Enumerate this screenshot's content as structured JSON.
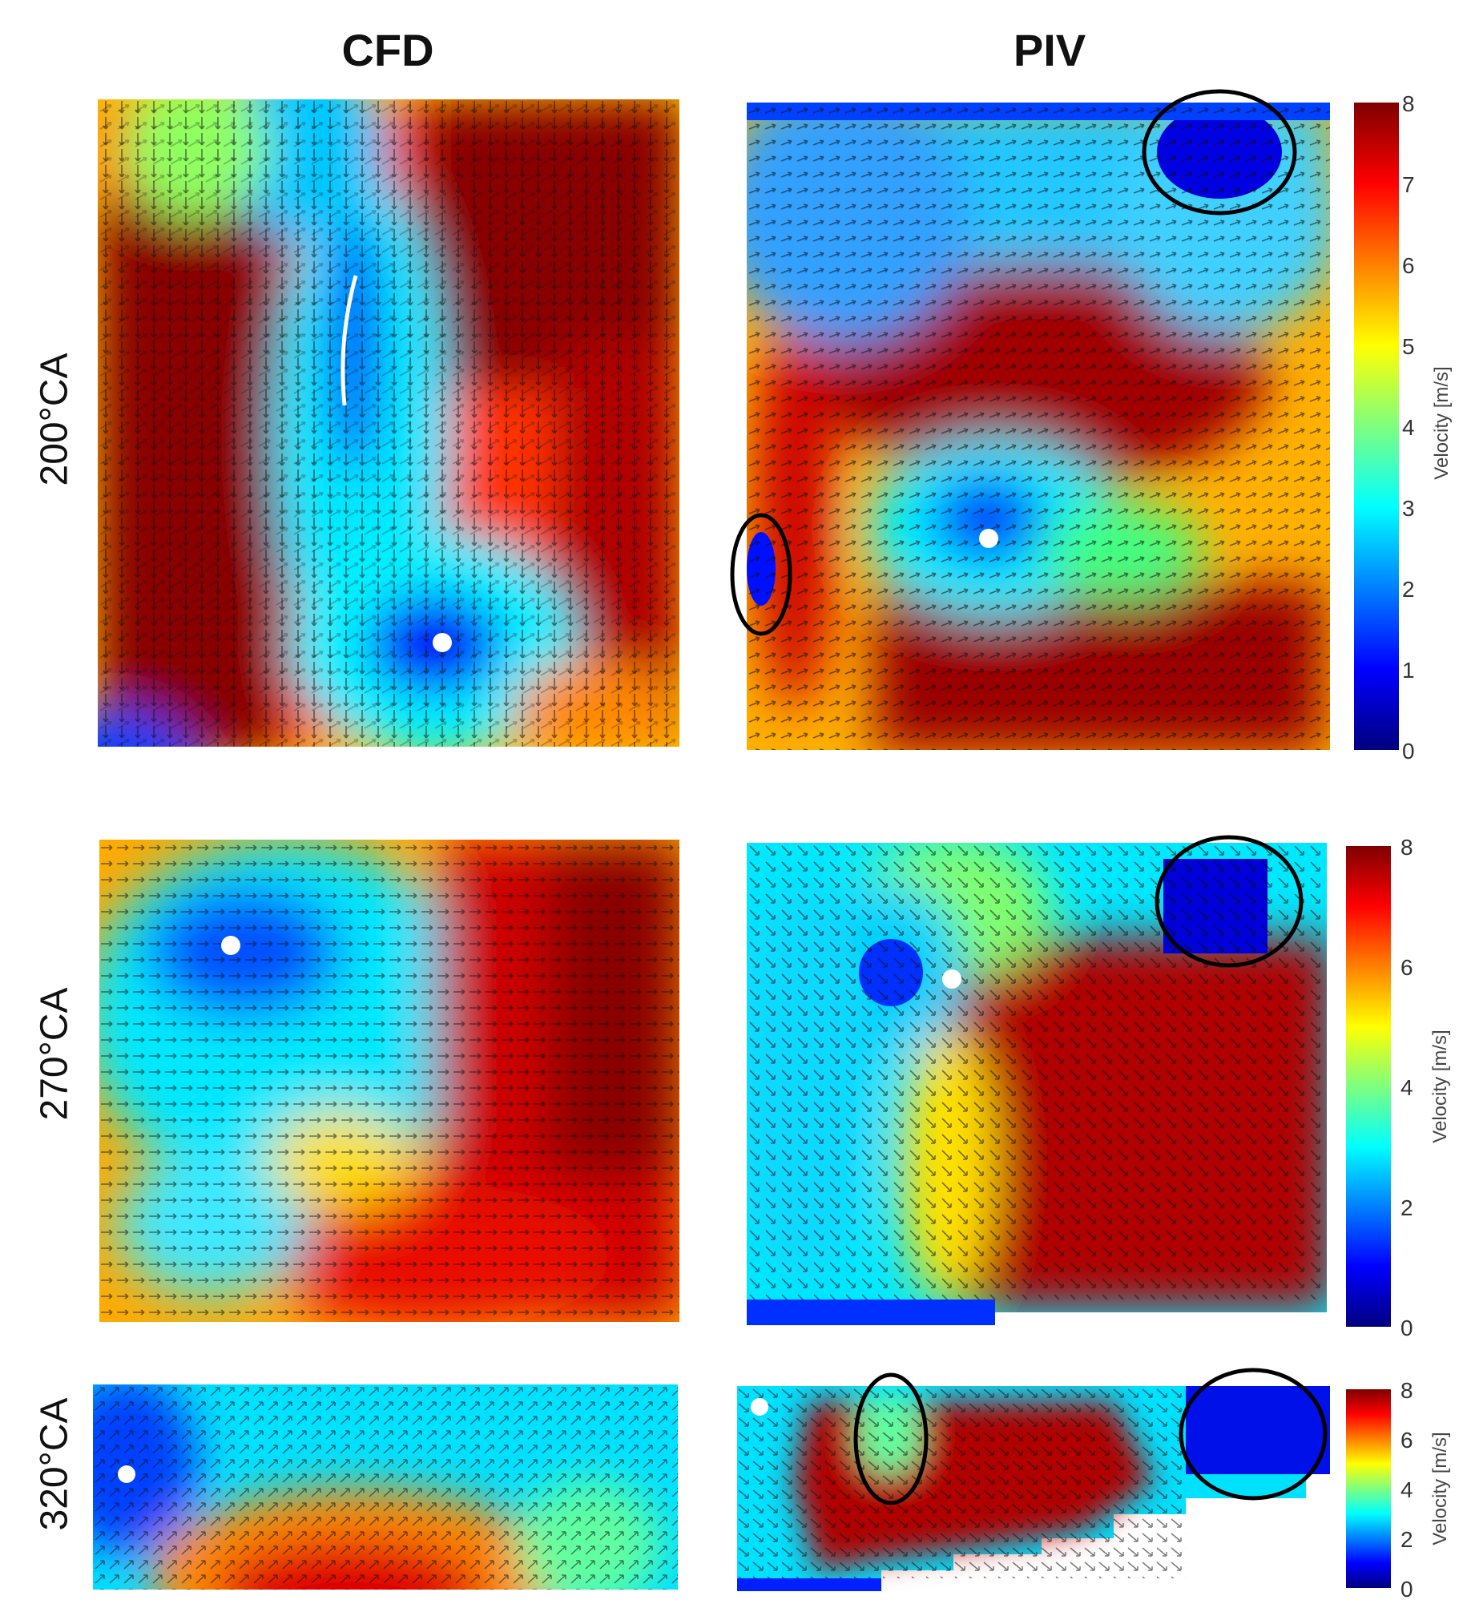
{
  "columns": {
    "left": "CFD",
    "right": "PIV"
  },
  "rows": [
    {
      "label": "200°CA"
    },
    {
      "label": "270°CA"
    },
    {
      "label": "320°CA"
    }
  ],
  "colorbar": {
    "label": "Velocity [m/s]",
    "ticks_row1": [
      "8",
      "7",
      "6",
      "5",
      "4",
      "3",
      "2",
      "1",
      "0"
    ],
    "ticks_row2": [
      "8",
      "6",
      "4",
      "2",
      "0"
    ],
    "ticks_row3": [
      "8",
      "6",
      "4",
      "2",
      "0"
    ],
    "range": [
      0,
      8
    ],
    "colormap": "jet"
  },
  "colors": {
    "dark_red": "#7f0000",
    "red": "#ff1a00",
    "yellow": "#ffee00",
    "green": "#40ff80",
    "cyan": "#00ffff",
    "blue": "#0000ff",
    "dark_blue": "#00008f",
    "vortex_marker": "#ffffff",
    "highlight_ellipse": "#000000"
  }
}
